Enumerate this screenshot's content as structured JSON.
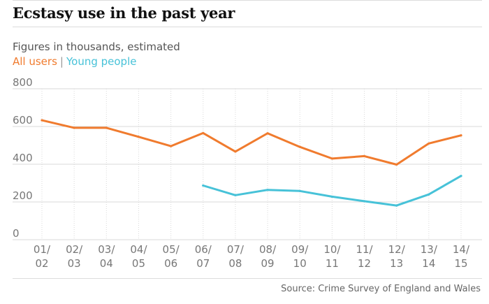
{
  "header": {
    "title": "Ecstasy use in the past year",
    "subtitle": "Figures in thousands, estimated"
  },
  "legend": {
    "separator": "|"
  },
  "footer": {
    "source": "Source: Crime Survey of England and Wales"
  },
  "colors": {
    "all_users": "#f07b2e",
    "young_people": "#47c2d8",
    "grid": "#d9d9d9",
    "tick_text": "#777777"
  },
  "chart_data": {
    "type": "line",
    "title": "Ecstasy use in the past year",
    "subtitle": "Figures in thousands, estimated",
    "ylabel": "",
    "xlabel": "",
    "ylim": [
      0,
      800
    ],
    "yticks": [
      0,
      200,
      400,
      600,
      800
    ],
    "grid": true,
    "legend_position": "top-left",
    "categories": [
      "01/\n02",
      "02/\n03",
      "03/\n04",
      "04/\n05",
      "05/\n06",
      "06/\n07",
      "07/\n08",
      "08/\n09",
      "09/\n10",
      "10/\n11",
      "11/\n12",
      "12/\n13",
      "13/\n14",
      "14/\n15"
    ],
    "series": [
      {
        "name": "All users",
        "values": [
          633,
          593,
          593,
          545,
          496,
          565,
          467,
          564,
          492,
          430,
          443,
          398,
          510,
          553
        ]
      },
      {
        "name": "Young people",
        "values": [
          null,
          null,
          null,
          null,
          null,
          287,
          236,
          264,
          258,
          228,
          204,
          181,
          240,
          338
        ]
      }
    ]
  }
}
